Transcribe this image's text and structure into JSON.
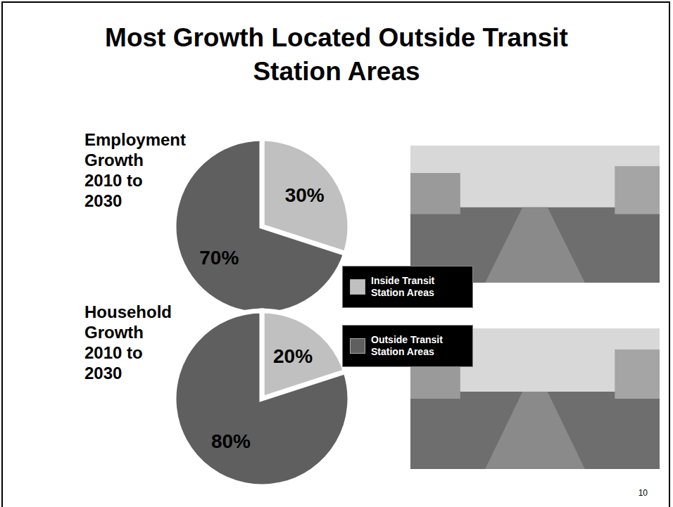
{
  "title": "Most Growth Located Outside Transit Station Areas",
  "page_number": 10,
  "chart_data": [
    {
      "type": "pie",
      "title": "Employment Growth 2010 to 2030",
      "categories": [
        "Inside Transit Station Areas",
        "Outside Transit Station Areas"
      ],
      "values": [
        30,
        70
      ],
      "value_labels": [
        "30%",
        "70%"
      ],
      "colors": [
        "#c0c0c0",
        "#5f5f5f"
      ],
      "data_labels": true,
      "legend": "right"
    },
    {
      "type": "pie",
      "title": "Household Growth 2010 to 2030",
      "categories": [
        "Inside Transit Station Areas",
        "Outside Transit Station Areas"
      ],
      "values": [
        20,
        80
      ],
      "value_labels": [
        "20%",
        "80%"
      ],
      "colors": [
        "#c0c0c0",
        "#5f5f5f"
      ],
      "data_labels": true,
      "legend": "right"
    }
  ]
}
